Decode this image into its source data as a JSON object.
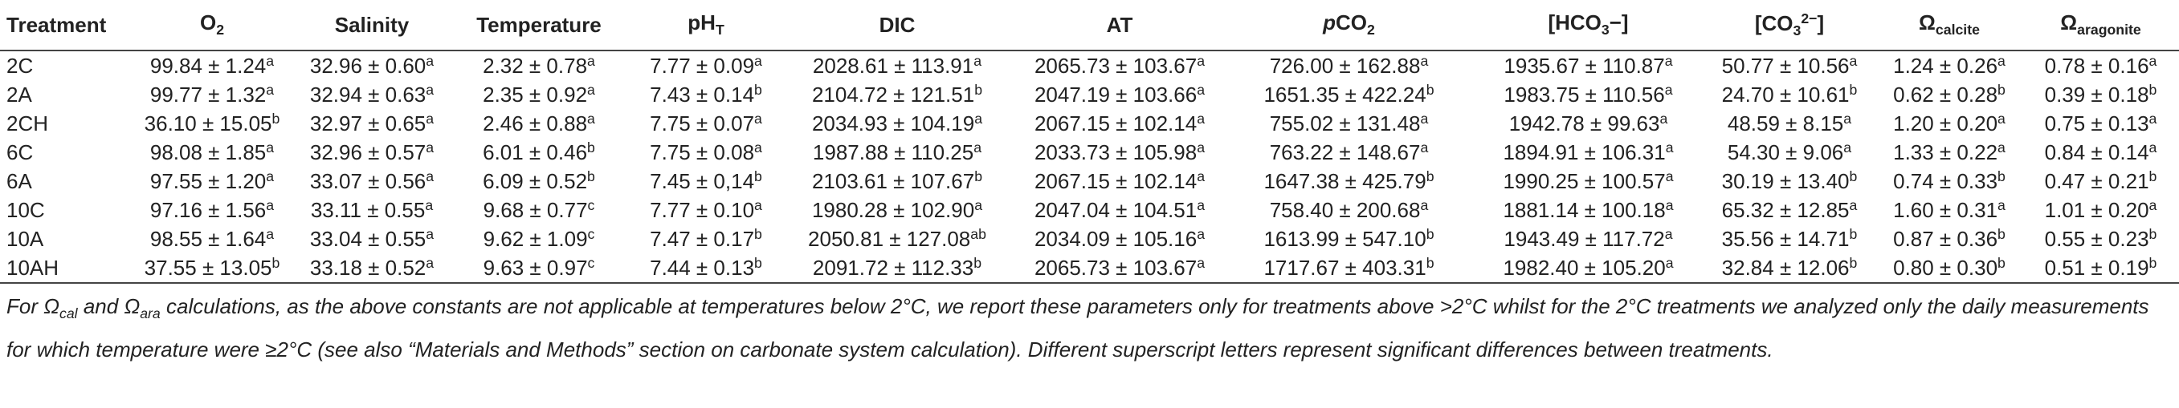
{
  "table": {
    "columns": [
      [
        "Treatment"
      ],
      [
        "O",
        {
          "sub": "2"
        }
      ],
      [
        "Salinity"
      ],
      [
        "Temperature"
      ],
      [
        "pH",
        {
          "sub": "T"
        }
      ],
      [
        "DIC"
      ],
      [
        "AT"
      ],
      [
        {
          "i": "p"
        },
        "CO",
        {
          "sub": "2"
        }
      ],
      [
        "[HCO",
        {
          "sub": "3"
        },
        "−]"
      ],
      [
        "[CO",
        {
          "sub": "3"
        },
        {
          "sup": "2−"
        },
        "]"
      ],
      [
        "Ω",
        {
          "sub": "calcite"
        }
      ],
      [
        "Ω",
        {
          "sub": "aragonite"
        }
      ]
    ],
    "rows": [
      [
        [
          "2C"
        ],
        [
          "99.84 ± 1.24",
          {
            "sup": "a"
          }
        ],
        [
          "32.96 ± 0.60",
          {
            "sup": "a"
          }
        ],
        [
          "2.32 ± 0.78",
          {
            "sup": "a"
          }
        ],
        [
          "7.77 ± 0.09",
          {
            "sup": "a"
          }
        ],
        [
          "2028.61 ± 113.91",
          {
            "sup": "a"
          }
        ],
        [
          "2065.73 ± 103.67",
          {
            "sup": "a"
          }
        ],
        [
          "726.00 ± 162.88",
          {
            "sup": "a"
          }
        ],
        [
          "1935.67 ± 110.87",
          {
            "sup": "a"
          }
        ],
        [
          "50.77 ± 10.56",
          {
            "sup": "a"
          }
        ],
        [
          "1.24 ± 0.26",
          {
            "sup": "a"
          }
        ],
        [
          "0.78 ± 0.16",
          {
            "sup": "a"
          }
        ]
      ],
      [
        [
          "2A"
        ],
        [
          "99.77 ± 1.32",
          {
            "sup": "a"
          }
        ],
        [
          "32.94 ± 0.63",
          {
            "sup": "a"
          }
        ],
        [
          "2.35 ± 0.92",
          {
            "sup": "a"
          }
        ],
        [
          "7.43 ± 0.14",
          {
            "sup": "b"
          }
        ],
        [
          "2104.72 ± 121.51",
          {
            "sup": "b"
          }
        ],
        [
          "2047.19 ± 103.66",
          {
            "sup": "a"
          }
        ],
        [
          "1651.35 ± 422.24",
          {
            "sup": "b"
          }
        ],
        [
          "1983.75 ± 110.56",
          {
            "sup": "a"
          }
        ],
        [
          "24.70 ± 10.61",
          {
            "sup": "b"
          }
        ],
        [
          "0.62 ± 0.28",
          {
            "sup": "b"
          }
        ],
        [
          "0.39 ± 0.18",
          {
            "sup": "b"
          }
        ]
      ],
      [
        [
          "2CH"
        ],
        [
          "36.10 ± 15.05",
          {
            "sup": "b"
          }
        ],
        [
          "32.97 ± 0.65",
          {
            "sup": "a"
          }
        ],
        [
          "2.46 ± 0.88",
          {
            "sup": "a"
          }
        ],
        [
          "7.75 ± 0.07",
          {
            "sup": "a"
          }
        ],
        [
          "2034.93 ± 104.19",
          {
            "sup": "a"
          }
        ],
        [
          "2067.15 ± 102.14",
          {
            "sup": "a"
          }
        ],
        [
          "755.02 ± 131.48",
          {
            "sup": "a"
          }
        ],
        [
          "1942.78 ± 99.63",
          {
            "sup": "a"
          }
        ],
        [
          "48.59 ± 8.15",
          {
            "sup": "a"
          }
        ],
        [
          "1.20 ± 0.20",
          {
            "sup": "a"
          }
        ],
        [
          "0.75 ± 0.13",
          {
            "sup": "a"
          }
        ]
      ],
      [
        [
          "6C"
        ],
        [
          "98.08 ± 1.85",
          {
            "sup": "a"
          }
        ],
        [
          "32.96 ± 0.57",
          {
            "sup": "a"
          }
        ],
        [
          "6.01 ± 0.46",
          {
            "sup": "b"
          }
        ],
        [
          "7.75 ± 0.08",
          {
            "sup": "a"
          }
        ],
        [
          "1987.88 ± 110.25",
          {
            "sup": "a"
          }
        ],
        [
          "2033.73 ± 105.98",
          {
            "sup": "a"
          }
        ],
        [
          "763.22 ± 148.67",
          {
            "sup": "a"
          }
        ],
        [
          "1894.91 ± 106.31",
          {
            "sup": "a"
          }
        ],
        [
          "54.30 ± 9.06",
          {
            "sup": "a"
          }
        ],
        [
          "1.33 ± 0.22",
          {
            "sup": "a"
          }
        ],
        [
          "0.84 ± 0.14",
          {
            "sup": "a"
          }
        ]
      ],
      [
        [
          "6A"
        ],
        [
          "97.55 ± 1.20",
          {
            "sup": "a"
          }
        ],
        [
          "33.07 ± 0.56",
          {
            "sup": "a"
          }
        ],
        [
          "6.09 ± 0.52",
          {
            "sup": "b"
          }
        ],
        [
          "7.45 ± 0,14",
          {
            "sup": "b"
          }
        ],
        [
          "2103.61 ± 107.67",
          {
            "sup": "b"
          }
        ],
        [
          "2067.15 ± 102.14",
          {
            "sup": "a"
          }
        ],
        [
          "1647.38 ± 425.79",
          {
            "sup": "b"
          }
        ],
        [
          "1990.25 ± 100.57",
          {
            "sup": "a"
          }
        ],
        [
          "30.19 ± 13.40",
          {
            "sup": "b"
          }
        ],
        [
          "0.74 ± 0.33",
          {
            "sup": "b"
          }
        ],
        [
          "0.47 ± 0.21",
          {
            "sup": "b"
          }
        ]
      ],
      [
        [
          "10C"
        ],
        [
          "97.16 ± 1.56",
          {
            "sup": "a"
          }
        ],
        [
          "33.11 ± 0.55",
          {
            "sup": "a"
          }
        ],
        [
          "9.68 ± 0.77",
          {
            "sup": "c"
          }
        ],
        [
          "7.77 ± 0.10",
          {
            "sup": "a"
          }
        ],
        [
          "1980.28 ± 102.90",
          {
            "sup": "a"
          }
        ],
        [
          "2047.04 ± 104.51",
          {
            "sup": "a"
          }
        ],
        [
          "758.40 ± 200.68",
          {
            "sup": "a"
          }
        ],
        [
          "1881.14 ± 100.18",
          {
            "sup": "a"
          }
        ],
        [
          "65.32 ± 12.85",
          {
            "sup": "a"
          }
        ],
        [
          "1.60 ± 0.31",
          {
            "sup": "a"
          }
        ],
        [
          "1.01 ± 0.20",
          {
            "sup": "a"
          }
        ]
      ],
      [
        [
          "10A"
        ],
        [
          "98.55 ± 1.64",
          {
            "sup": "a"
          }
        ],
        [
          "33.04 ± 0.55",
          {
            "sup": "a"
          }
        ],
        [
          "9.62 ± 1.09",
          {
            "sup": "c"
          }
        ],
        [
          "7.47 ± 0.17",
          {
            "sup": "b"
          }
        ],
        [
          "2050.81 ± 127.08",
          {
            "sup": "ab"
          }
        ],
        [
          "2034.09 ± 105.16",
          {
            "sup": "a"
          }
        ],
        [
          "1613.99 ± 547.10",
          {
            "sup": "b"
          }
        ],
        [
          "1943.49 ± 117.72",
          {
            "sup": "a"
          }
        ],
        [
          "35.56 ± 14.71",
          {
            "sup": "b"
          }
        ],
        [
          "0.87 ± 0.36",
          {
            "sup": "b"
          }
        ],
        [
          "0.55 ± 0.23",
          {
            "sup": "b"
          }
        ]
      ],
      [
        [
          "10AH"
        ],
        [
          "37.55 ± 13.05",
          {
            "sup": "b"
          }
        ],
        [
          "33.18 ± 0.52",
          {
            "sup": "a"
          }
        ],
        [
          "9.63 ± 0.97",
          {
            "sup": "c"
          }
        ],
        [
          "7.44 ± 0.13",
          {
            "sup": "b"
          }
        ],
        [
          "2091.72 ± 112.33",
          {
            "sup": "b"
          }
        ],
        [
          "2065.73 ± 103.67",
          {
            "sup": "a"
          }
        ],
        [
          "1717.67 ± 403.31",
          {
            "sup": "b"
          }
        ],
        [
          "1982.40 ± 105.20",
          {
            "sup": "a"
          }
        ],
        [
          "32.84 ± 12.06",
          {
            "sup": "b"
          }
        ],
        [
          "0.80 ± 0.30",
          {
            "sup": "b"
          }
        ],
        [
          "0.51 ± 0.19",
          {
            "sup": "b"
          }
        ]
      ]
    ]
  },
  "footnote": [
    "For ",
    "Ω",
    {
      "sub": "cal"
    },
    " and ",
    "Ω",
    {
      "sub": "ara"
    },
    " calculations, as the above constants are not applicable at temperatures below 2°C, we report these parameters only for treatments above >2°C whilst for the 2°C treatments we analyzed only the daily measurements for which temperature were ≥2°C (see also “Materials and Methods” section on carbonate system calculation). Different superscript letters represent significant differences between treatments."
  ]
}
